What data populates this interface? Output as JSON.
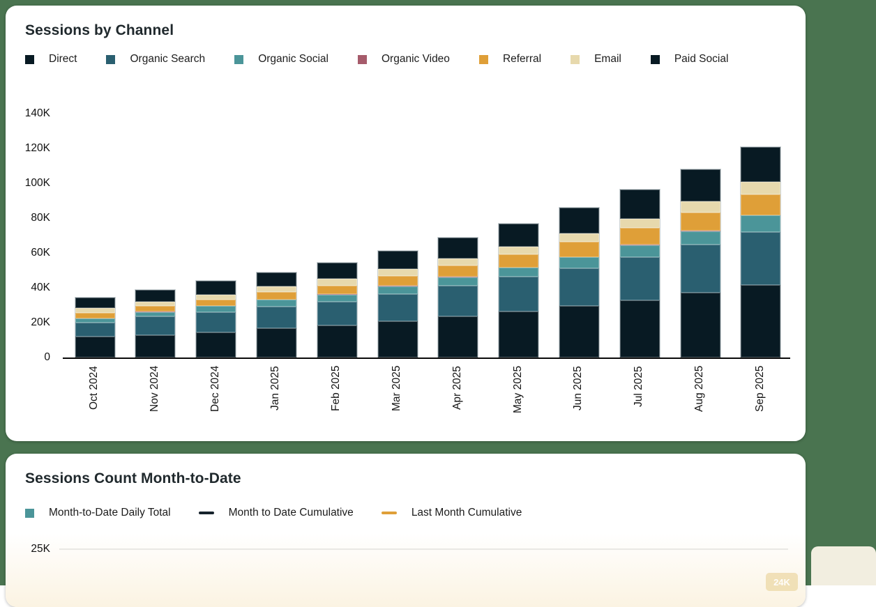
{
  "page": {
    "background_color": "#4a7450",
    "corner_patch_color": "#f2eee0"
  },
  "sessions_by_channel": {
    "title": "Sessions by Channel",
    "legend": [
      {
        "label": "Direct",
        "color": "#081a23"
      },
      {
        "label": "Organic Search",
        "color": "#2a5f70"
      },
      {
        "label": "Organic Social",
        "color": "#4b9599"
      },
      {
        "label": "Organic Video",
        "color": "#a65b6b"
      },
      {
        "label": "Referral",
        "color": "#df9f38"
      },
      {
        "label": "Email",
        "color": "#e7d9ad"
      },
      {
        "label": "Paid Social",
        "color": "#081a23"
      }
    ],
    "chart_data": {
      "type": "bar",
      "stacked": true,
      "unit": "K sessions",
      "grid": false,
      "categories": [
        "Oct 2024",
        "Nov 2024",
        "Dec 2024",
        "Jan 2025",
        "Feb 2025",
        "Mar 2025",
        "Apr 2025",
        "May 2025",
        "Jun 2025",
        "Jul 2025",
        "Aug 2025",
        "Sep 2025"
      ],
      "series": [
        {
          "name": "Direct",
          "color": "#081a23",
          "values": [
            12.1,
            12.9,
            14.5,
            16.9,
            18.5,
            20.8,
            23.5,
            26.5,
            29.5,
            32.9,
            37.2,
            41.5
          ]
        },
        {
          "name": "Organic Search",
          "color": "#2a5f70",
          "values": [
            8.0,
            10.6,
            11.6,
            12.3,
            13.6,
            15.7,
            17.7,
            20.0,
            21.7,
            24.6,
            27.6,
            30.6
          ]
        },
        {
          "name": "Organic Social",
          "color": "#4b9599",
          "values": [
            2.2,
            2.6,
            3.4,
            4.0,
            4.0,
            4.4,
            4.9,
            5.0,
            6.3,
            7.0,
            7.7,
            9.5
          ]
        },
        {
          "name": "Organic Video",
          "color": "#a65b6b",
          "values": [
            0.2,
            0.2,
            0.2,
            0.2,
            0.2,
            0.2,
            0.2,
            0.2,
            0.2,
            0.2,
            0.2,
            0.2
          ]
        },
        {
          "name": "Referral",
          "color": "#df9f38",
          "values": [
            3.2,
            3.4,
            3.7,
            4.3,
            5.1,
            5.6,
            6.4,
            7.4,
            8.8,
            9.8,
            10.7,
            12.0
          ]
        },
        {
          "name": "Email",
          "color": "#e7d9ad",
          "values": [
            2.6,
            2.4,
            2.7,
            3.0,
            4.0,
            4.3,
            4.3,
            4.6,
            4.9,
            5.3,
            6.4,
            6.9
          ]
        },
        {
          "name": "Paid Social",
          "color": "#081a23",
          "values": [
            6.2,
            6.9,
            8.0,
            8.0,
            9.1,
            10.4,
            11.7,
            13.0,
            14.7,
            16.5,
            18.3,
            20.3
          ]
        }
      ],
      "y_ticks": [
        {
          "value": 0,
          "label": "0"
        },
        {
          "value": 20,
          "label": "20K"
        },
        {
          "value": 40,
          "label": "40K"
        },
        {
          "value": 60,
          "label": "60K"
        },
        {
          "value": 80,
          "label": "80K"
        },
        {
          "value": 100,
          "label": "100K"
        },
        {
          "value": 120,
          "label": "120K"
        },
        {
          "value": 140,
          "label": "140K"
        }
      ],
      "ylim": [
        0,
        140
      ],
      "legend_position": "top"
    }
  },
  "sessions_mtd": {
    "title": "Sessions Count Month-to-Date",
    "legend": [
      {
        "label": "Month-to-Date Daily Total",
        "color": "#4b9599",
        "swatch": "square"
      },
      {
        "label": "Month to Date Cumulative",
        "color": "#16222c",
        "swatch": "line"
      },
      {
        "label": "Last Month Cumulative",
        "color": "#df9f38",
        "swatch": "line"
      }
    ],
    "chart_data": {
      "type": "bar",
      "note": "chart mostly cut off below screenshot edge",
      "visible_y_tick": "25K",
      "visible_badge_label": "24K"
    },
    "visible_tick": "25K",
    "badge_label": "24K"
  }
}
